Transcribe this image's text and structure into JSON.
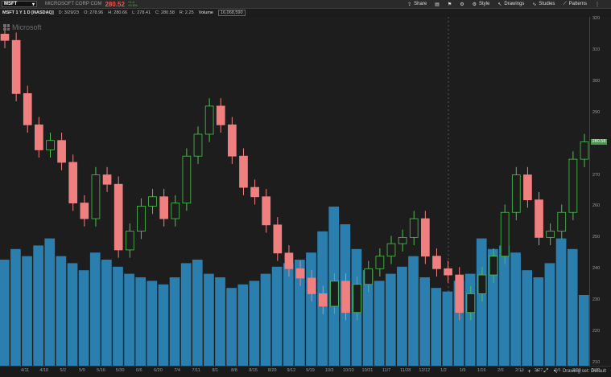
{
  "toolbar": {
    "symbol": "MSFT",
    "company": "MICROSOFT CORP COM",
    "last_price": "280.52",
    "change_small": [
      "+1.4",
      "+0.5%"
    ],
    "tools": [
      {
        "label": "Share",
        "icon": "share-icon"
      },
      {
        "label": "",
        "icon": "print-icon"
      },
      {
        "label": "",
        "icon": "flag-icon"
      },
      {
        "label": "",
        "icon": "gear-icon"
      },
      {
        "label": "Style",
        "icon": "style-icon"
      },
      {
        "label": "Drawings",
        "icon": "pointer-icon"
      },
      {
        "label": "Studies",
        "icon": "studies-icon"
      },
      {
        "label": "Patterns",
        "icon": "patterns-icon"
      }
    ]
  },
  "infobar": {
    "title": "MSFT 1 Y 1 D [NASDAQ]",
    "date": "D: 3/29/23",
    "open": "O: 278.96",
    "high": "H: 280.66",
    "low": "L: 278.41",
    "close": "C: 280.58",
    "range": "R: 2.25",
    "volume_label": "Volume",
    "volume_value": "16,068,590"
  },
  "watermark": "Microsoft",
  "price_axis": {
    "ticks": [
      "320",
      "310",
      "300",
      "290",
      "280",
      "270",
      "260",
      "250",
      "240",
      "230",
      "220",
      "210"
    ],
    "last_tag": "280.58"
  },
  "time_axis": {
    "ticks": [
      "4/11",
      "4/18",
      "5/2",
      "5/9",
      "5/16",
      "5/30",
      "6/6",
      "6/20",
      "7/4",
      "7/11",
      "8/1",
      "8/8",
      "8/15",
      "8/29",
      "9/12",
      "9/19",
      "10/3",
      "10/10",
      "10/31",
      "11/7",
      "11/28",
      "12/12",
      "1/2",
      "1/9",
      "1/16",
      "2/6",
      "2/13",
      "2/27",
      "3/6",
      "3/20",
      "3/27"
    ]
  },
  "status": {
    "drawing_set": "Drawing set: Default"
  },
  "colors": {
    "up": "#4cc34c",
    "down": "#f08080",
    "volume": "#2a7faf",
    "background": "#1d1d1d"
  },
  "chart_data": {
    "type": "candlestick",
    "title": "MSFT 1 Y 1 D [NASDAQ]",
    "ylim": [
      210,
      320
    ],
    "x": [
      "4/5",
      "4/11",
      "4/18",
      "4/25",
      "5/2",
      "5/9",
      "5/16",
      "5/23",
      "5/30",
      "6/6",
      "6/13",
      "6/20",
      "6/27",
      "7/4",
      "7/11",
      "7/18",
      "7/25",
      "8/1",
      "8/8",
      "8/15",
      "8/22",
      "8/29",
      "9/5",
      "9/12",
      "9/19",
      "9/26",
      "10/3",
      "10/10",
      "10/17",
      "10/24",
      "10/31",
      "11/7",
      "11/14",
      "11/21",
      "11/28",
      "12/5",
      "12/12",
      "12/19",
      "12/26",
      "1/2",
      "1/9",
      "1/16",
      "1/23",
      "1/30",
      "2/6",
      "2/13",
      "2/20",
      "2/27",
      "3/6",
      "3/13",
      "3/20",
      "3/27"
    ],
    "close": [
      313,
      296,
      286,
      278,
      281,
      274,
      261,
      256,
      270,
      267,
      246,
      252,
      260,
      263,
      256,
      261,
      276,
      283,
      292,
      286,
      276,
      266,
      263,
      254,
      245,
      240,
      237,
      232,
      228,
      236,
      226,
      235,
      240,
      244,
      248,
      250,
      256,
      244,
      240,
      238,
      226,
      232,
      238,
      244,
      258,
      270,
      262,
      250,
      252,
      258,
      275,
      280.58
    ],
    "volume_millions": [
      30,
      33,
      31,
      34,
      36,
      31,
      29,
      27,
      32,
      30,
      28,
      26,
      25,
      24,
      23,
      25,
      29,
      30,
      26,
      25,
      22,
      23,
      24,
      26,
      28,
      29,
      30,
      32,
      38,
      45,
      40,
      33,
      27,
      24,
      26,
      28,
      31,
      25,
      22,
      21,
      24,
      26,
      36,
      33,
      34,
      32,
      27,
      25,
      29,
      36,
      33,
      20
    ]
  }
}
